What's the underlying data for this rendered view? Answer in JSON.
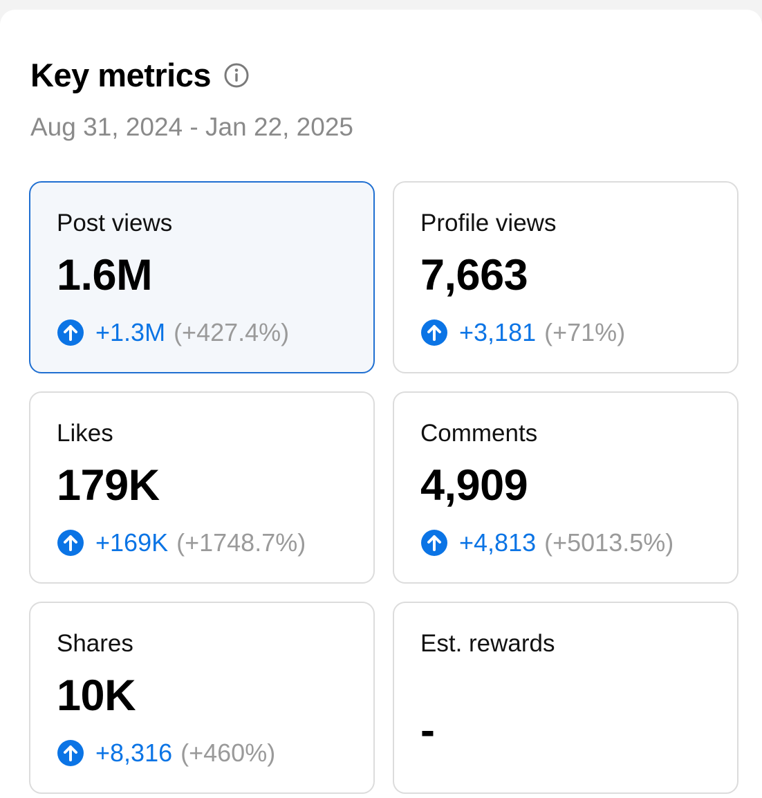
{
  "header": {
    "title": "Key metrics",
    "info_icon": "info-circle-icon",
    "date_range": "Aug 31, 2024 - Jan 22, 2025"
  },
  "colors": {
    "accent": "#0b74e5",
    "selected_border": "#1f6fd1",
    "selected_bg": "#f4f7fb",
    "muted": "#9a9a9a"
  },
  "metrics": [
    {
      "label": "Post views",
      "value": "1.6M",
      "delta": "+1.3M",
      "pct": "(+427.4%)",
      "selected": true,
      "trend_icon": "arrow-up-circle-icon"
    },
    {
      "label": "Profile views",
      "value": "7,663",
      "delta": "+3,181",
      "pct": "(+71%)",
      "selected": false,
      "trend_icon": "arrow-up-circle-icon"
    },
    {
      "label": "Likes",
      "value": "179K",
      "delta": "+169K",
      "pct": "(+1748.7%)",
      "selected": false,
      "trend_icon": "arrow-up-circle-icon"
    },
    {
      "label": "Comments",
      "value": "4,909",
      "delta": "+4,813",
      "pct": "(+5013.5%)",
      "selected": false,
      "trend_icon": "arrow-up-circle-icon"
    },
    {
      "label": "Shares",
      "value": "10K",
      "delta": "+8,316",
      "pct": "(+460%)",
      "selected": false,
      "trend_icon": "arrow-up-circle-icon"
    },
    {
      "label": "Est. rewards",
      "value": "-",
      "selected": false
    }
  ]
}
